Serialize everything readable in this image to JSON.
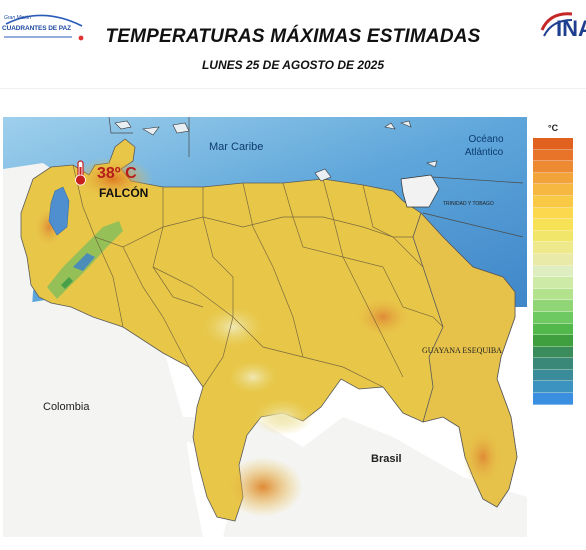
{
  "header": {
    "logo_left_small": "Gran Misión",
    "logo_left_big": "CUADRANTES DE PAZ",
    "logo_right": "INA",
    "title": "TEMPERATURAS MÁXIMAS ESTIMADAS",
    "subtitle": "LUNES 25 DE AGOSTO DE 2025"
  },
  "map": {
    "sea_label": "Mar Caribe",
    "ocean_label_line1": "Océano",
    "ocean_label_line2": "Atlántico",
    "highlight_temp": "38º C",
    "highlight_state": "FALCÓN",
    "country_colombia": "Colombia",
    "country_brasil": "Brasil",
    "region_guayana": "GUAYANA ESEQUIBA",
    "island_label": "TRINIDAD Y TOBAGO",
    "colors": {
      "sea": "#6fb3de",
      "land_base": "#e9c84a",
      "hot": "#e48a2a",
      "cool": "#4aa04a",
      "highlight": "#c81e1e"
    }
  },
  "legend": {
    "unit": "°C",
    "colors": [
      "#e0621e",
      "#e8742a",
      "#ee8a32",
      "#f2a33a",
      "#f6b840",
      "#f9c946",
      "#fbd84e",
      "#f7e157",
      "#f2e66a",
      "#eee98a",
      "#e9eaa8",
      "#dfeec0",
      "#cdeaa6",
      "#b2e38c",
      "#90d676",
      "#6ec962",
      "#52b84c",
      "#3f9f3e",
      "#3a8d5a",
      "#3a8878",
      "#3b8c9a",
      "#3d93bf",
      "#3a8fe0"
    ]
  }
}
